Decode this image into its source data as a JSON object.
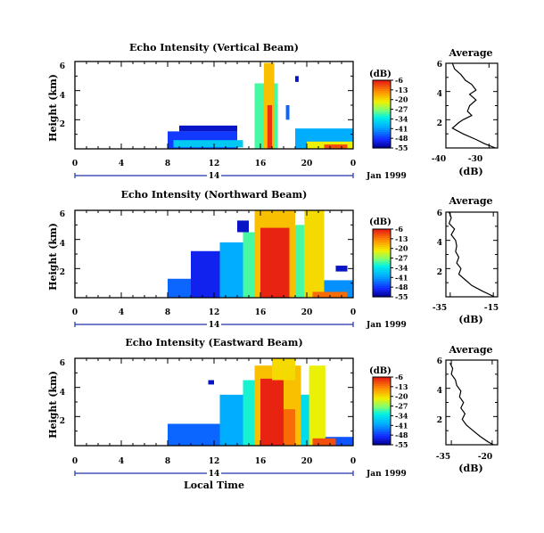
{
  "chart_data": [
    {
      "type": "heatmap",
      "title": "Echo Intensity (Vertical Beam)",
      "ylabel": "Height (km)",
      "x_ticks": [
        "0",
        "4",
        "8",
        "12",
        "16",
        "20",
        "0"
      ],
      "y_ticks": [
        "6",
        "4",
        "2"
      ],
      "date_label": "14",
      "date_suffix": "Jan 1999",
      "colorbar": {
        "unit": "(dB)",
        "ticks": [
          "-6",
          "-13",
          "-20",
          "-27",
          "-34",
          "-41",
          "-48",
          "-55"
        ]
      },
      "cells": [
        {
          "t0": 8.0,
          "t1": 14.0,
          "h0": 0.0,
          "h1": 1.2,
          "v": -48
        },
        {
          "t0": 9.0,
          "t1": 14.0,
          "h0": 1.2,
          "h1": 1.6,
          "v": -52
        },
        {
          "t0": 8.5,
          "t1": 14.5,
          "h0": 0.1,
          "h1": 0.6,
          "v": -37
        },
        {
          "t0": 15.5,
          "t1": 17.5,
          "h0": 0.0,
          "h1": 4.5,
          "v": -30
        },
        {
          "t0": 16.3,
          "t1": 17.2,
          "h0": 0.0,
          "h1": 5.9,
          "v": -18
        },
        {
          "t0": 16.6,
          "t1": 17.0,
          "h0": 0.0,
          "h1": 3.0,
          "v": -8
        },
        {
          "t0": 19.0,
          "t1": 24.0,
          "h0": 0.0,
          "h1": 1.4,
          "v": -40
        },
        {
          "t0": 20.0,
          "t1": 24.0,
          "h0": 0.0,
          "h1": 0.5,
          "v": -22
        },
        {
          "t0": 21.5,
          "t1": 23.5,
          "h0": 0.0,
          "h1": 0.3,
          "v": -10
        },
        {
          "t0": 18.2,
          "t1": 18.5,
          "h0": 2.0,
          "h1": 3.0,
          "v": -45
        },
        {
          "t0": 19.0,
          "t1": 19.3,
          "h0": 4.6,
          "h1": 5.0,
          "v": -52
        }
      ],
      "profile": {
        "title": "Average",
        "xlabel": "(dB)",
        "xlim": [
          -40,
          -28
        ],
        "x_ticks": [
          "-40",
          "-30"
        ],
        "ylim": [
          0,
          6
        ],
        "y_ticks": [
          "6",
          "4",
          "2"
        ],
        "points": [
          [
            -38.5,
            6.0
          ],
          [
            -38.0,
            5.6
          ],
          [
            -36.5,
            5.2
          ],
          [
            -35.5,
            4.8
          ],
          [
            -34.0,
            4.5
          ],
          [
            -33.0,
            4.1
          ],
          [
            -34.5,
            3.8
          ],
          [
            -33.0,
            3.4
          ],
          [
            -34.5,
            3.0
          ],
          [
            -35.0,
            2.6
          ],
          [
            -34.0,
            2.3
          ],
          [
            -36.0,
            2.0
          ],
          [
            -37.0,
            1.8
          ],
          [
            -38.5,
            1.4
          ],
          [
            -36.0,
            1.0
          ],
          [
            -33.0,
            0.6
          ],
          [
            -31.0,
            0.3
          ],
          [
            -28.5,
            0.0
          ]
        ]
      }
    },
    {
      "type": "heatmap",
      "title": "Echo Intensity (Northward Beam)",
      "ylabel": "Height (km)",
      "x_ticks": [
        "0",
        "4",
        "8",
        "12",
        "16",
        "20",
        "0"
      ],
      "y_ticks": [
        "6",
        "4",
        "2"
      ],
      "date_label": "14",
      "date_suffix": "Jan 1999",
      "colorbar": {
        "unit": "(dB)",
        "ticks": [
          "-6",
          "-13",
          "-20",
          "-27",
          "-34",
          "-41",
          "-48",
          "-55"
        ]
      },
      "cells": [
        {
          "t0": 8.0,
          "t1": 16.0,
          "h0": 0.0,
          "h1": 1.3,
          "v": -45
        },
        {
          "t0": 10.0,
          "t1": 16.0,
          "h0": 0.0,
          "h1": 3.2,
          "v": -50
        },
        {
          "t0": 12.5,
          "t1": 16.0,
          "h0": 0.0,
          "h1": 3.8,
          "v": -40
        },
        {
          "t0": 14.5,
          "t1": 16.0,
          "h0": 0.0,
          "h1": 4.5,
          "v": -30
        },
        {
          "t0": 15.5,
          "t1": 19.0,
          "h0": 0.0,
          "h1": 6.0,
          "v": -18
        },
        {
          "t0": 16.0,
          "t1": 18.5,
          "h0": 0.0,
          "h1": 4.8,
          "v": -7
        },
        {
          "t0": 19.0,
          "t1": 19.8,
          "h0": 0.0,
          "h1": 5.0,
          "v": -30
        },
        {
          "t0": 19.8,
          "t1": 21.5,
          "h0": 0.0,
          "h1": 6.0,
          "v": -20
        },
        {
          "t0": 21.5,
          "t1": 24.0,
          "h0": 0.0,
          "h1": 1.2,
          "v": -42
        },
        {
          "t0": 20.5,
          "t1": 23.5,
          "h0": 0.0,
          "h1": 0.4,
          "v": -12
        },
        {
          "t0": 14.0,
          "t1": 15.0,
          "h0": 4.5,
          "h1": 5.3,
          "v": -52
        },
        {
          "t0": 22.5,
          "t1": 23.5,
          "h0": 1.8,
          "h1": 2.2,
          "v": -52
        }
      ],
      "profile": {
        "title": "Average",
        "xlabel": "(dB)",
        "xlim": [
          -37,
          -13
        ],
        "x_ticks": [
          "-35",
          "-15"
        ],
        "ylim": [
          0,
          6
        ],
        "y_ticks": [
          "6",
          "4",
          "2"
        ],
        "points": [
          [
            -35.5,
            6.0
          ],
          [
            -34.5,
            5.6
          ],
          [
            -35.5,
            5.2
          ],
          [
            -33.0,
            4.8
          ],
          [
            -34.5,
            4.4
          ],
          [
            -32.5,
            4.0
          ],
          [
            -32.0,
            3.6
          ],
          [
            -32.5,
            3.2
          ],
          [
            -31.0,
            2.8
          ],
          [
            -32.0,
            2.4
          ],
          [
            -30.0,
            2.0
          ],
          [
            -31.0,
            1.6
          ],
          [
            -28.0,
            1.2
          ],
          [
            -25.0,
            0.8
          ],
          [
            -20.0,
            0.4
          ],
          [
            -14.5,
            0.0
          ]
        ]
      }
    },
    {
      "type": "heatmap",
      "title": "Echo Intensity (Eastward Beam)",
      "ylabel": "Height (km)",
      "x_ticks": [
        "0",
        "4",
        "8",
        "12",
        "16",
        "20",
        "0"
      ],
      "y_ticks": [
        "6",
        "4",
        "2"
      ],
      "date_label": "14",
      "date_suffix": "Jan 1999",
      "colorbar": {
        "unit": "(dB)",
        "ticks": [
          "-6",
          "-13",
          "-20",
          "-27",
          "-34",
          "-41",
          "-48",
          "-55"
        ]
      },
      "cells": [
        {
          "t0": 8.0,
          "t1": 16.0,
          "h0": 0.0,
          "h1": 1.5,
          "v": -45
        },
        {
          "t0": 12.5,
          "t1": 16.0,
          "h0": 0.0,
          "h1": 3.5,
          "v": -40
        },
        {
          "t0": 14.5,
          "t1": 16.0,
          "h0": 0.0,
          "h1": 4.5,
          "v": -32
        },
        {
          "t0": 15.5,
          "t1": 19.5,
          "h0": 0.0,
          "h1": 5.5,
          "v": -18
        },
        {
          "t0": 16.0,
          "t1": 18.0,
          "h0": 0.0,
          "h1": 4.6,
          "v": -7
        },
        {
          "t0": 18.0,
          "t1": 19.0,
          "h0": 0.0,
          "h1": 2.5,
          "v": -12
        },
        {
          "t0": 17.0,
          "t1": 19.0,
          "h0": 4.5,
          "h1": 6.0,
          "v": -20
        },
        {
          "t0": 19.5,
          "t1": 20.5,
          "h0": 0.0,
          "h1": 3.5,
          "v": -35
        },
        {
          "t0": 20.2,
          "t1": 21.6,
          "h0": 0.0,
          "h1": 5.5,
          "v": -22
        },
        {
          "t0": 21.6,
          "t1": 24.0,
          "h0": 0.0,
          "h1": 0.6,
          "v": -46
        },
        {
          "t0": 20.5,
          "t1": 22.5,
          "h0": 0.0,
          "h1": 0.5,
          "v": -10
        },
        {
          "t0": 11.5,
          "t1": 12.0,
          "h0": 4.2,
          "h1": 4.5,
          "v": -52
        }
      ],
      "profile": {
        "title": "Average",
        "xlabel": "(dB)",
        "xlim": [
          -37,
          -18
        ],
        "x_ticks": [
          "-35",
          "-20"
        ],
        "ylim": [
          0,
          6
        ],
        "y_ticks": [
          "6",
          "4",
          "2"
        ],
        "points": [
          [
            -35.5,
            5.8
          ],
          [
            -34.5,
            5.4
          ],
          [
            -35.0,
            5.0
          ],
          [
            -33.5,
            4.6
          ],
          [
            -33.0,
            4.2
          ],
          [
            -31.5,
            3.8
          ],
          [
            -32.0,
            3.4
          ],
          [
            -30.5,
            3.0
          ],
          [
            -31.5,
            2.6
          ],
          [
            -30.0,
            2.2
          ],
          [
            -31.0,
            1.8
          ],
          [
            -29.5,
            1.4
          ],
          [
            -27.0,
            1.0
          ],
          [
            -24.5,
            0.6
          ],
          [
            -21.5,
            0.2
          ],
          [
            -19.5,
            0.0
          ]
        ]
      }
    }
  ],
  "footer": {
    "xlabel": "Local Time"
  }
}
